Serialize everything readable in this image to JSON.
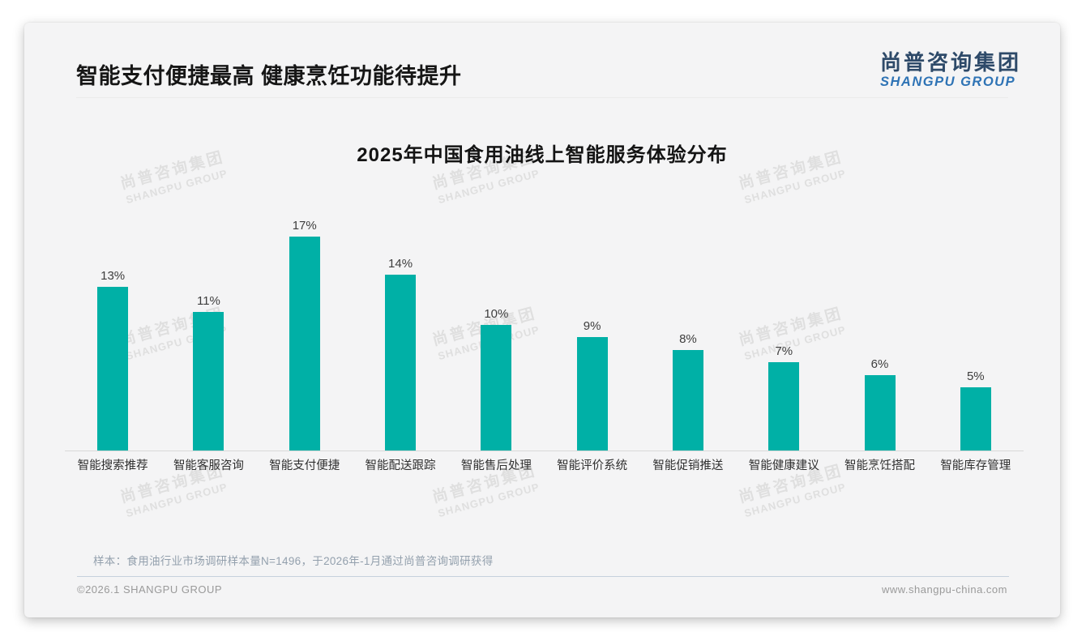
{
  "page": {
    "main_title": "智能支付便捷最高 健康烹饪功能待提升",
    "logo": {
      "cn": "尚普咨询集团",
      "en": "SHANGPU GROUP"
    },
    "watermark": {
      "cn": "尚普咨询集团",
      "en": "SHANGPU GROUP"
    },
    "note": "样本：食用油行业市场调研样本量N=1496，于2026年-1月通过尚普咨询调研获得",
    "footer_left": "©2026.1 SHANGPU GROUP",
    "footer_right": "www.shangpu-china.com"
  },
  "colors": {
    "bar": "#00b0a6",
    "logo_cn": "#2e4a69",
    "logo_en": "#2e73b5",
    "card_bg": "#f4f4f5"
  },
  "chart_data": {
    "type": "bar",
    "title": "2025年中国食用油线上智能服务体验分布",
    "categories": [
      "智能搜索推荐",
      "智能客服咨询",
      "智能支付便捷",
      "智能配送跟踪",
      "智能售后处理",
      "智能评价系统",
      "智能促销推送",
      "智能健康建议",
      "智能烹饪搭配",
      "智能库存管理"
    ],
    "values": [
      13,
      11,
      17,
      14,
      10,
      9,
      8,
      7,
      6,
      5
    ],
    "unit": "%",
    "xlabel": "",
    "ylabel": "",
    "ylim": [
      0,
      18
    ],
    "grid": false,
    "legend": false,
    "data_labels": true,
    "bar_color": "#00b0a6"
  }
}
